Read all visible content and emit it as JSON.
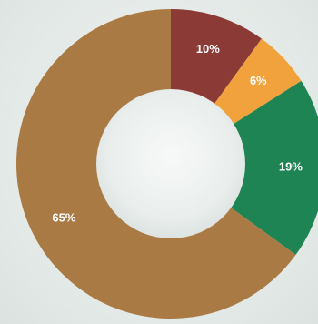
{
  "chart_data": {
    "type": "pie",
    "variant": "donut",
    "title": "",
    "slices": [
      {
        "label": "10%",
        "value": 10,
        "color": "#8b3a36"
      },
      {
        "label": "6%",
        "value": 6,
        "color": "#f2a23c"
      },
      {
        "label": "19%",
        "value": 19,
        "color": "#1e8453"
      },
      {
        "label": "65%",
        "value": 65,
        "color": "#a97a44"
      }
    ],
    "hole_color": "#e7ebea",
    "legend": "none"
  }
}
